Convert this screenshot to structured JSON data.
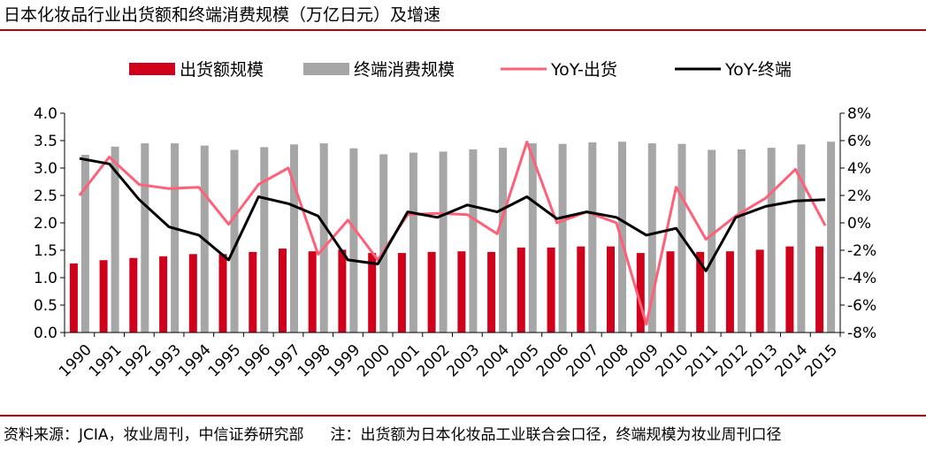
{
  "title": "日本化妆品行业出货额和终端消费规模（万亿日元）及增速",
  "source": "资料来源：JCIA，妆业周刊，中信证券研究部",
  "note": "注：出货额为日本化妆品工业联合会口径，终端规模为妆业周刊口径",
  "colors": {
    "shipment_bar": "#d0021b",
    "retail_bar": "#a6a6a6",
    "yoy_shipment": "#ff6078",
    "yoy_retail": "#000000",
    "rule": "#c00000"
  },
  "chart_data": {
    "type": "bar+line",
    "categories": [
      "1990",
      "1991",
      "1992",
      "1993",
      "1994",
      "1995",
      "1996",
      "1997",
      "1998",
      "1999",
      "2000",
      "2001",
      "2002",
      "2003",
      "2004",
      "2005",
      "2006",
      "2007",
      "2008",
      "2009",
      "2010",
      "2011",
      "2012",
      "2013",
      "2014",
      "2015"
    ],
    "legend_position": "top",
    "grid": false,
    "y_left": {
      "range": [
        0,
        4.0
      ],
      "ticks": [
        "0.0",
        "0.5",
        "1.0",
        "1.5",
        "2.0",
        "2.5",
        "3.0",
        "3.5",
        "4.0"
      ]
    },
    "y_right": {
      "range": [
        -8,
        8
      ],
      "ticks": [
        "-8%",
        "-6%",
        "-4%",
        "-2%",
        "0%",
        "2%",
        "4%",
        "6%",
        "8%"
      ]
    },
    "series": [
      {
        "name": "出货额规模",
        "kind": "bar",
        "axis": "left",
        "values": [
          1.26,
          1.32,
          1.36,
          1.39,
          1.43,
          1.43,
          1.47,
          1.53,
          1.48,
          1.51,
          1.45,
          1.45,
          1.47,
          1.48,
          1.47,
          1.55,
          1.55,
          1.57,
          1.57,
          1.45,
          1.48,
          1.47,
          1.48,
          1.51,
          1.57,
          1.57
        ]
      },
      {
        "name": "终端消费规模",
        "kind": "bar",
        "axis": "left",
        "values": [
          3.24,
          3.39,
          3.45,
          3.45,
          3.41,
          3.33,
          3.38,
          3.43,
          3.45,
          3.36,
          3.25,
          3.28,
          3.3,
          3.34,
          3.37,
          3.45,
          3.44,
          3.47,
          3.48,
          3.45,
          3.44,
          3.33,
          3.34,
          3.37,
          3.43,
          3.48
        ]
      },
      {
        "name": "YoY-出货",
        "kind": "line",
        "axis": "right",
        "values": [
          2.0,
          4.8,
          2.8,
          2.5,
          2.6,
          -0.1,
          2.8,
          4.0,
          -2.3,
          0.2,
          -2.7,
          0.6,
          0.7,
          0.6,
          -0.8,
          5.9,
          0.0,
          0.8,
          0.0,
          -7.4,
          2.6,
          -1.2,
          0.5,
          1.8,
          3.9,
          -0.2
        ]
      },
      {
        "name": "YoY-终端",
        "kind": "line",
        "axis": "right",
        "values": [
          4.7,
          4.3,
          1.7,
          -0.3,
          -0.9,
          -2.7,
          1.9,
          1.4,
          0.5,
          -2.7,
          -3.0,
          0.8,
          0.4,
          1.3,
          0.8,
          1.9,
          0.3,
          0.8,
          0.4,
          -0.9,
          -0.4,
          -3.5,
          0.4,
          1.2,
          1.6,
          1.7
        ]
      }
    ]
  }
}
